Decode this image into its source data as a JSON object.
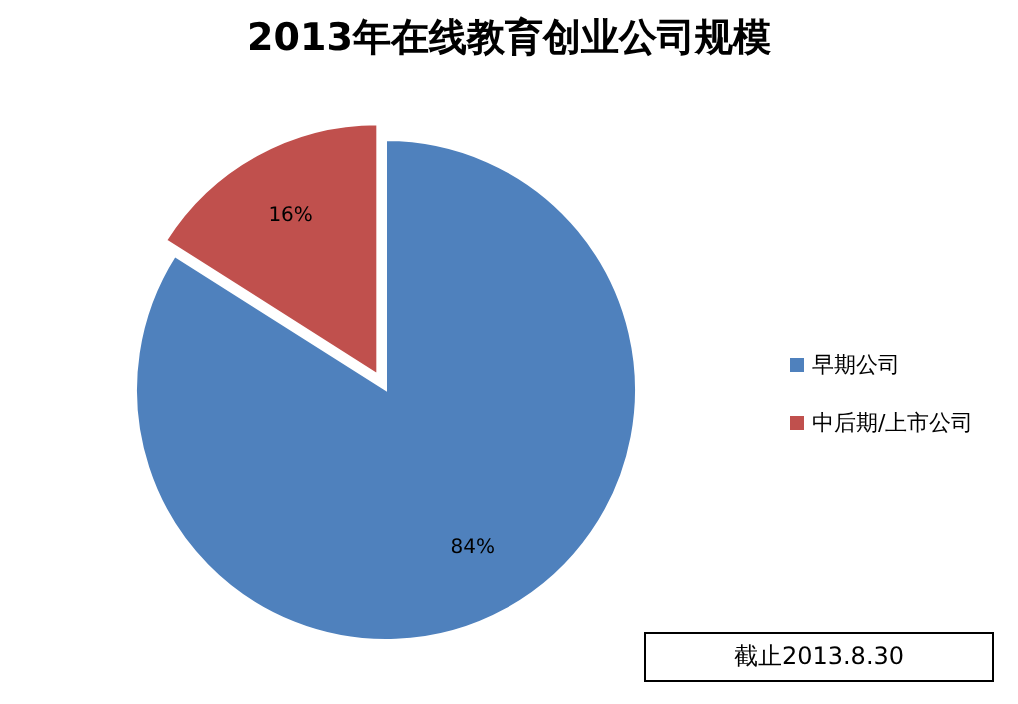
{
  "chart_data": {
    "type": "pie",
    "title": "2013年在线教育创业公司规模",
    "categories": [
      "早期公司",
      "中后期/上市公司"
    ],
    "values": [
      84,
      16
    ],
    "colors": [
      "#4f81bd",
      "#c0504d"
    ],
    "value_labels": [
      "84%",
      "16%"
    ],
    "legend": "right",
    "annotations": [
      "截止2013.8.30"
    ]
  }
}
